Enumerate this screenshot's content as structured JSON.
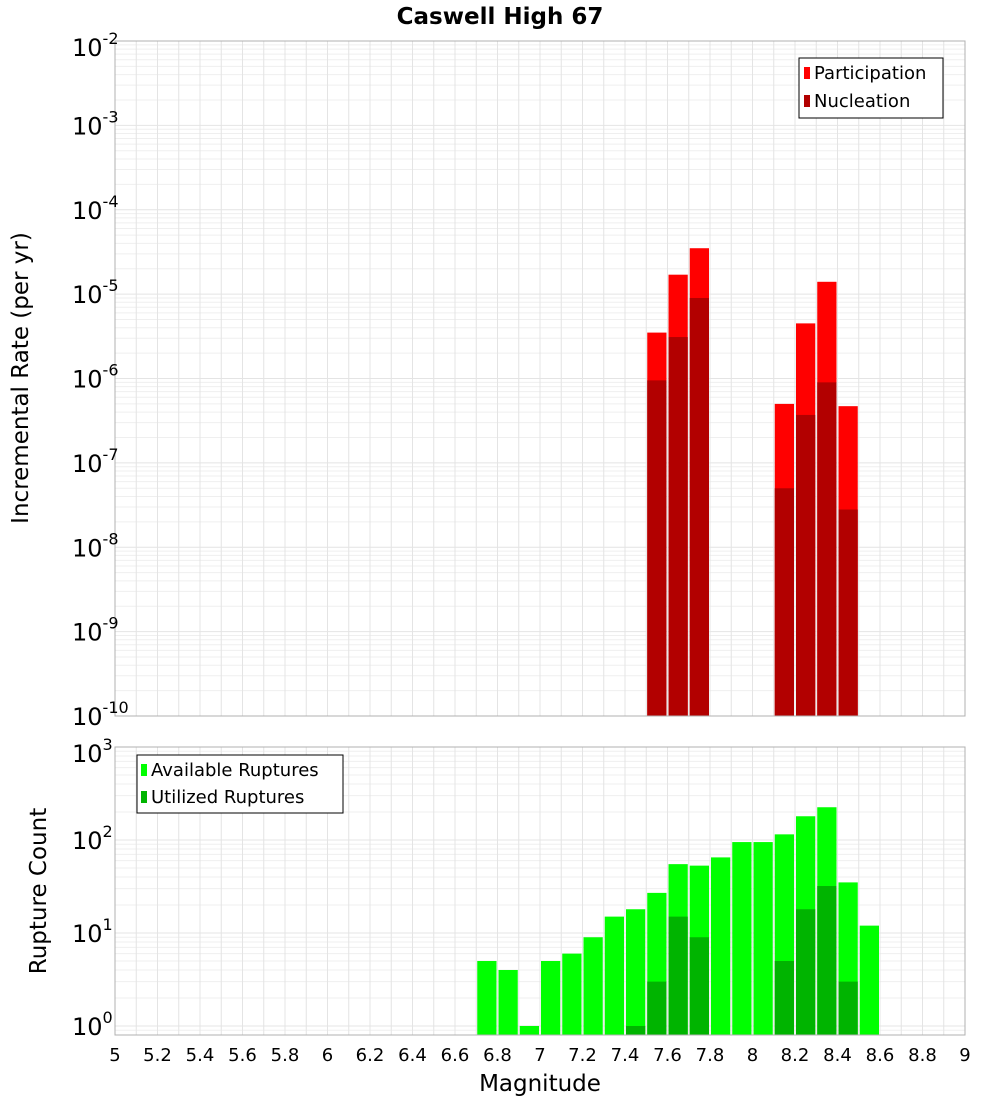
{
  "chart_data": [
    {
      "type": "bar",
      "title": "Caswell High 67",
      "ylabel": "Incremental Rate (per yr)",
      "xlabel": "",
      "yscale": "log",
      "ylim": [
        1e-10,
        0.01
      ],
      "xlim": [
        5,
        9
      ],
      "y_tick_labels": [
        {
          "base": "10",
          "exp": "-10"
        },
        {
          "base": "10",
          "exp": "-9"
        },
        {
          "base": "10",
          "exp": "-8"
        },
        {
          "base": "10",
          "exp": "-7"
        },
        {
          "base": "10",
          "exp": "-6"
        },
        {
          "base": "10",
          "exp": "-5"
        },
        {
          "base": "10",
          "exp": "-4"
        },
        {
          "base": "10",
          "exp": "-3"
        },
        {
          "base": "10",
          "exp": "-2"
        }
      ],
      "legend_position": "top-right",
      "grid": true,
      "x": [
        7.55,
        7.65,
        7.75,
        8.15,
        8.25,
        8.35,
        8.45
      ],
      "series": [
        {
          "name": "Participation",
          "color": "#ff0000",
          "values": [
            3.5e-06,
            1.7e-05,
            3.5e-05,
            5e-07,
            4.5e-06,
            1.4e-05,
            4.7e-07
          ]
        },
        {
          "name": "Nucleation",
          "color": "#b20000",
          "values": [
            9.5e-07,
            3.1e-06,
            9e-06,
            5e-08,
            3.7e-07,
            9e-07,
            2.8e-08
          ]
        }
      ]
    },
    {
      "type": "bar",
      "title": "",
      "ylabel": "Rupture Count",
      "xlabel": "Magnitude",
      "yscale": "log",
      "ylim": [
        0.8,
        1000
      ],
      "xlim": [
        5,
        9
      ],
      "x_ticks": [
        "5",
        "5.2",
        "5.4",
        "5.6",
        "5.8",
        "6",
        "6.2",
        "6.4",
        "6.6",
        "6.8",
        "7",
        "7.2",
        "7.4",
        "7.6",
        "7.8",
        "8",
        "8.2",
        "8.4",
        "8.6",
        "8.8",
        "9"
      ],
      "y_tick_labels": [
        {
          "base": "10",
          "exp": "0"
        },
        {
          "base": "10",
          "exp": "1"
        },
        {
          "base": "10",
          "exp": "2"
        },
        {
          "base": "10",
          "exp": "3"
        }
      ],
      "legend_position": "top-left",
      "grid": true,
      "series": [
        {
          "name": "Available Ruptures",
          "color": "#00ff00",
          "x": [
            6.75,
            6.85,
            6.95,
            7.05,
            7.15,
            7.25,
            7.35,
            7.45,
            7.55,
            7.65,
            7.75,
            7.85,
            7.95,
            8.05,
            8.15,
            8.25,
            8.35,
            8.45,
            8.55
          ],
          "values": [
            5,
            4,
            1,
            5,
            6,
            9,
            15,
            18,
            27,
            55,
            53,
            65,
            95,
            95,
            115,
            180,
            225,
            35,
            12
          ]
        },
        {
          "name": "Utilized Ruptures",
          "color": "#00b400",
          "x": [
            7.45,
            7.55,
            7.65,
            7.75,
            8.15,
            8.25,
            8.35,
            8.45
          ],
          "values": [
            1,
            3,
            15,
            9,
            5,
            18,
            32,
            3
          ]
        }
      ]
    }
  ]
}
